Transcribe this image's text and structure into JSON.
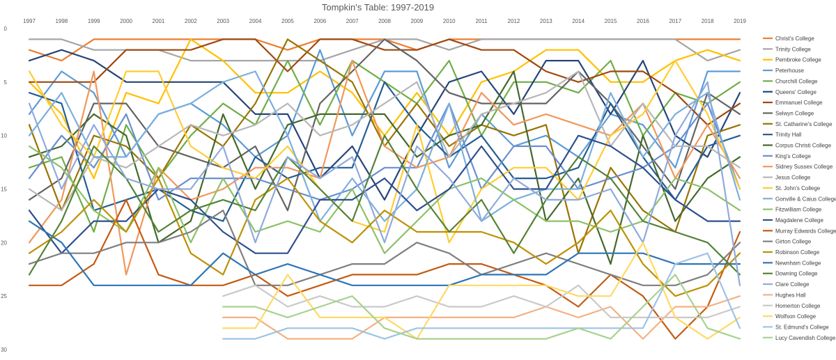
{
  "chart_data": {
    "type": "line",
    "title": "Tompkin's Table: 1997-2019",
    "xlabel": "",
    "ylabel": "",
    "x": [
      "1997",
      "1998",
      "1999",
      "2000",
      "2001",
      "2002",
      "2003",
      "2004",
      "2005",
      "2006",
      "2007",
      "2008",
      "2009",
      "2010",
      "2011",
      "2012",
      "2013",
      "2014",
      "2015",
      "2016",
      "2017",
      "2018",
      "2019"
    ],
    "ylim": [
      0,
      30
    ],
    "y_ticks": [
      "0",
      "5",
      "10",
      "15",
      "20",
      "25",
      "30"
    ],
    "y_reversed": true,
    "legend_position": "right",
    "grid": false,
    "series": [
      {
        "name": "Christ's College",
        "color": "#ED7D31",
        "values": [
          2,
          3,
          1,
          1,
          1,
          1,
          1,
          1,
          2,
          1,
          1,
          1,
          2,
          1,
          1,
          1,
          1,
          1,
          1,
          1,
          1,
          1,
          1
        ]
      },
      {
        "name": "Trinity College",
        "color": "#A5A5A5",
        "values": [
          1,
          1,
          2,
          2,
          2,
          3,
          3,
          3,
          3,
          3,
          2,
          1,
          1,
          2,
          1,
          1,
          1,
          1,
          1,
          1,
          1,
          3,
          2
        ]
      },
      {
        "name": "Pembroke College",
        "color": "#FFC000",
        "values": [
          5,
          8,
          14,
          6,
          7,
          1,
          3,
          6,
          6,
          4,
          6,
          10,
          6,
          10,
          5,
          4,
          2,
          2,
          5,
          5,
          3,
          2,
          3
        ]
      },
      {
        "name": "Peterhouse",
        "color": "#5B9BD5",
        "values": [
          8,
          4,
          6,
          12,
          8,
          7,
          9,
          12,
          10,
          2,
          10,
          4,
          4,
          13,
          8,
          11,
          10,
          12,
          8,
          9,
          13,
          4,
          4
        ]
      },
      {
        "name": "Churchill College",
        "color": "#70AD47",
        "values": [
          13,
          12,
          19,
          9,
          14,
          10,
          7,
          9,
          3,
          9,
          3,
          5,
          7,
          3,
          10,
          5,
          5,
          6,
          3,
          10,
          6,
          7,
          5
        ]
      },
      {
        "name": "Queens' College",
        "color": "#264478",
        "values": [
          3,
          2,
          3,
          5,
          5,
          5,
          5,
          8,
          8,
          14,
          11,
          16,
          10,
          5,
          4,
          8,
          3,
          3,
          8,
          3,
          10,
          12,
          6
        ]
      },
      {
        "name": "Emmanuel College",
        "color": "#9E480E",
        "values": [
          5,
          5,
          5,
          2,
          2,
          2,
          1,
          1,
          4,
          1,
          1,
          2,
          2,
          1,
          2,
          2,
          4,
          5,
          4,
          4,
          6,
          9,
          7
        ]
      },
      {
        "name": "Selwyn College",
        "color": "#636363",
        "values": [
          16,
          14,
          7,
          7,
          11,
          12,
          13,
          11,
          17,
          7,
          4,
          1,
          3,
          6,
          7,
          7,
          7,
          4,
          7,
          11,
          15,
          6,
          8
        ]
      },
      {
        "name": "St. Catharine's College",
        "color": "#997300",
        "values": [
          9,
          17,
          10,
          11,
          14,
          9,
          11,
          7,
          1,
          3,
          5,
          11,
          7,
          11,
          9,
          10,
          9,
          21,
          13,
          17,
          19,
          10,
          9
        ]
      },
      {
        "name": "Trinity Hall",
        "color": "#255E91",
        "values": [
          6,
          7,
          17,
          16,
          15,
          17,
          18,
          12,
          14,
          13,
          13,
          5,
          9,
          12,
          10,
          14,
          14,
          13,
          7,
          12,
          16,
          11,
          10
        ]
      },
      {
        "name": "Corpus Christi College",
        "color": "#43682B",
        "values": [
          12,
          11,
          8,
          10,
          20,
          18,
          8,
          15,
          9,
          8,
          8,
          8,
          12,
          10,
          9,
          4,
          18,
          14,
          22,
          10,
          18,
          14,
          12
        ]
      },
      {
        "name": "King's College",
        "color": "#698ED0",
        "values": [
          14,
          10,
          13,
          8,
          16,
          14,
          14,
          14,
          15,
          16,
          15,
          13,
          13,
          7,
          15,
          11,
          11,
          15,
          14,
          13,
          11,
          7,
          15
        ]
      },
      {
        "name": "Sidney Sussex College",
        "color": "#F1975A",
        "values": [
          20,
          16,
          4,
          23,
          13,
          16,
          15,
          13,
          13,
          14,
          3,
          11,
          13,
          12,
          6,
          9,
          8,
          9,
          10,
          7,
          14,
          9,
          14
        ]
      },
      {
        "name": "Jesus College",
        "color": "#B7B7B7",
        "values": [
          15,
          17,
          12,
          13,
          11,
          9,
          10,
          9,
          7,
          10,
          9,
          7,
          5,
          12,
          8,
          7,
          6,
          4,
          11,
          7,
          11,
          11,
          13
        ]
      },
      {
        "name": "St. John's College",
        "color": "#FFCD33",
        "values": [
          4,
          9,
          12,
          4,
          4,
          11,
          13,
          14,
          11,
          15,
          18,
          19,
          9,
          20,
          15,
          13,
          13,
          16,
          10,
          8,
          3,
          8,
          15
        ]
      },
      {
        "name": "Gonville & Caius College",
        "color": "#7CAFDD",
        "values": [
          10,
          6,
          12,
          12,
          8,
          7,
          5,
          4,
          10,
          18,
          14,
          18,
          15,
          7,
          18,
          16,
          15,
          15,
          6,
          12,
          8,
          6,
          16
        ]
      },
      {
        "name": "Fitzwilliam College",
        "color": "#8CC168",
        "values": [
          11,
          13,
          17,
          19,
          13,
          20,
          14,
          19,
          18,
          19,
          15,
          21,
          18,
          15,
          14,
          16,
          18,
          18,
          19,
          18,
          14,
          15,
          17
        ]
      },
      {
        "name": "Magdalene College",
        "color": "#2E4F8E",
        "values": [
          17,
          21,
          18,
          18,
          15,
          16,
          19,
          21,
          21,
          16,
          16,
          14,
          17,
          15,
          11,
          15,
          15,
          10,
          11,
          13,
          16,
          18,
          18
        ]
      },
      {
        "name": "Murray Edwards College",
        "color": "#C55A11",
        "values": [
          24,
          24,
          22,
          16,
          23,
          24,
          24,
          23,
          25,
          24,
          23,
          23,
          23,
          22,
          22,
          23,
          24,
          26,
          23,
          25,
          29,
          26,
          19
        ]
      },
      {
        "name": "Girton College",
        "color": "#7F7F7F",
        "values": [
          22,
          21,
          21,
          20,
          20,
          19,
          17,
          24,
          24,
          23,
          22,
          22,
          20,
          21,
          23,
          22,
          21,
          22,
          23,
          24,
          24,
          23,
          20
        ]
      },
      {
        "name": "Robinson College",
        "color": "#BF9000",
        "values": [
          21,
          19,
          16,
          19,
          14,
          21,
          23,
          16,
          14,
          18,
          20,
          17,
          19,
          19,
          19,
          20,
          22,
          20,
          17,
          22,
          25,
          24,
          21
        ]
      },
      {
        "name": "Newnham College",
        "color": "#2E75B6",
        "values": [
          18,
          20,
          24,
          24,
          24,
          24,
          21,
          23,
          22,
          23,
          24,
          24,
          24,
          24,
          23,
          23,
          23,
          21,
          21,
          21,
          22,
          22,
          22
        ]
      },
      {
        "name": "Downing College",
        "color": "#548235",
        "values": [
          23,
          18,
          11,
          14,
          19,
          17,
          16,
          17,
          12,
          15,
          18,
          10,
          15,
          19,
          16,
          21,
          16,
          12,
          14,
          18,
          19,
          20,
          23
        ]
      },
      {
        "name": "Clare College",
        "color": "#8FAADC",
        "values": [
          7,
          15,
          9,
          14,
          15,
          15,
          11,
          20,
          12,
          14,
          12,
          20,
          11,
          14,
          18,
          14,
          16,
          16,
          15,
          20,
          10,
          5,
          24
        ]
      },
      {
        "name": "Hughes Hall",
        "color": "#F4B183",
        "values": [
          null,
          null,
          null,
          null,
          null,
          null,
          27,
          27,
          29,
          29,
          29,
          27,
          27,
          27,
          27,
          27,
          26,
          27,
          26,
          29,
          26,
          26,
          25
        ]
      },
      {
        "name": "Homerton College",
        "color": "#C9C9C9",
        "values": [
          null,
          null,
          null,
          null,
          null,
          null,
          25,
          24,
          26,
          25,
          26,
          26,
          25,
          26,
          26,
          25,
          26,
          24,
          27,
          27,
          27,
          27,
          26
        ]
      },
      {
        "name": "Wolfson College",
        "color": "#FFD966",
        "values": [
          null,
          null,
          null,
          null,
          null,
          null,
          28,
          28,
          23,
          27,
          27,
          27,
          29,
          24,
          24,
          24,
          24,
          25,
          25,
          20,
          27,
          29,
          27
        ]
      },
      {
        "name": "St. Edmund's College",
        "color": "#9DC3E6",
        "values": [
          null,
          null,
          null,
          null,
          null,
          null,
          29,
          29,
          28,
          28,
          28,
          29,
          28,
          28,
          28,
          28,
          28,
          28,
          28,
          28,
          22,
          21,
          28
        ]
      },
      {
        "name": "Lucy Cavendish College",
        "color": "#A9D18E",
        "values": [
          null,
          null,
          null,
          null,
          null,
          null,
          26,
          26,
          27,
          26,
          25,
          28,
          29,
          29,
          29,
          29,
          29,
          28,
          29,
          26,
          23,
          28,
          29
        ]
      }
    ]
  }
}
